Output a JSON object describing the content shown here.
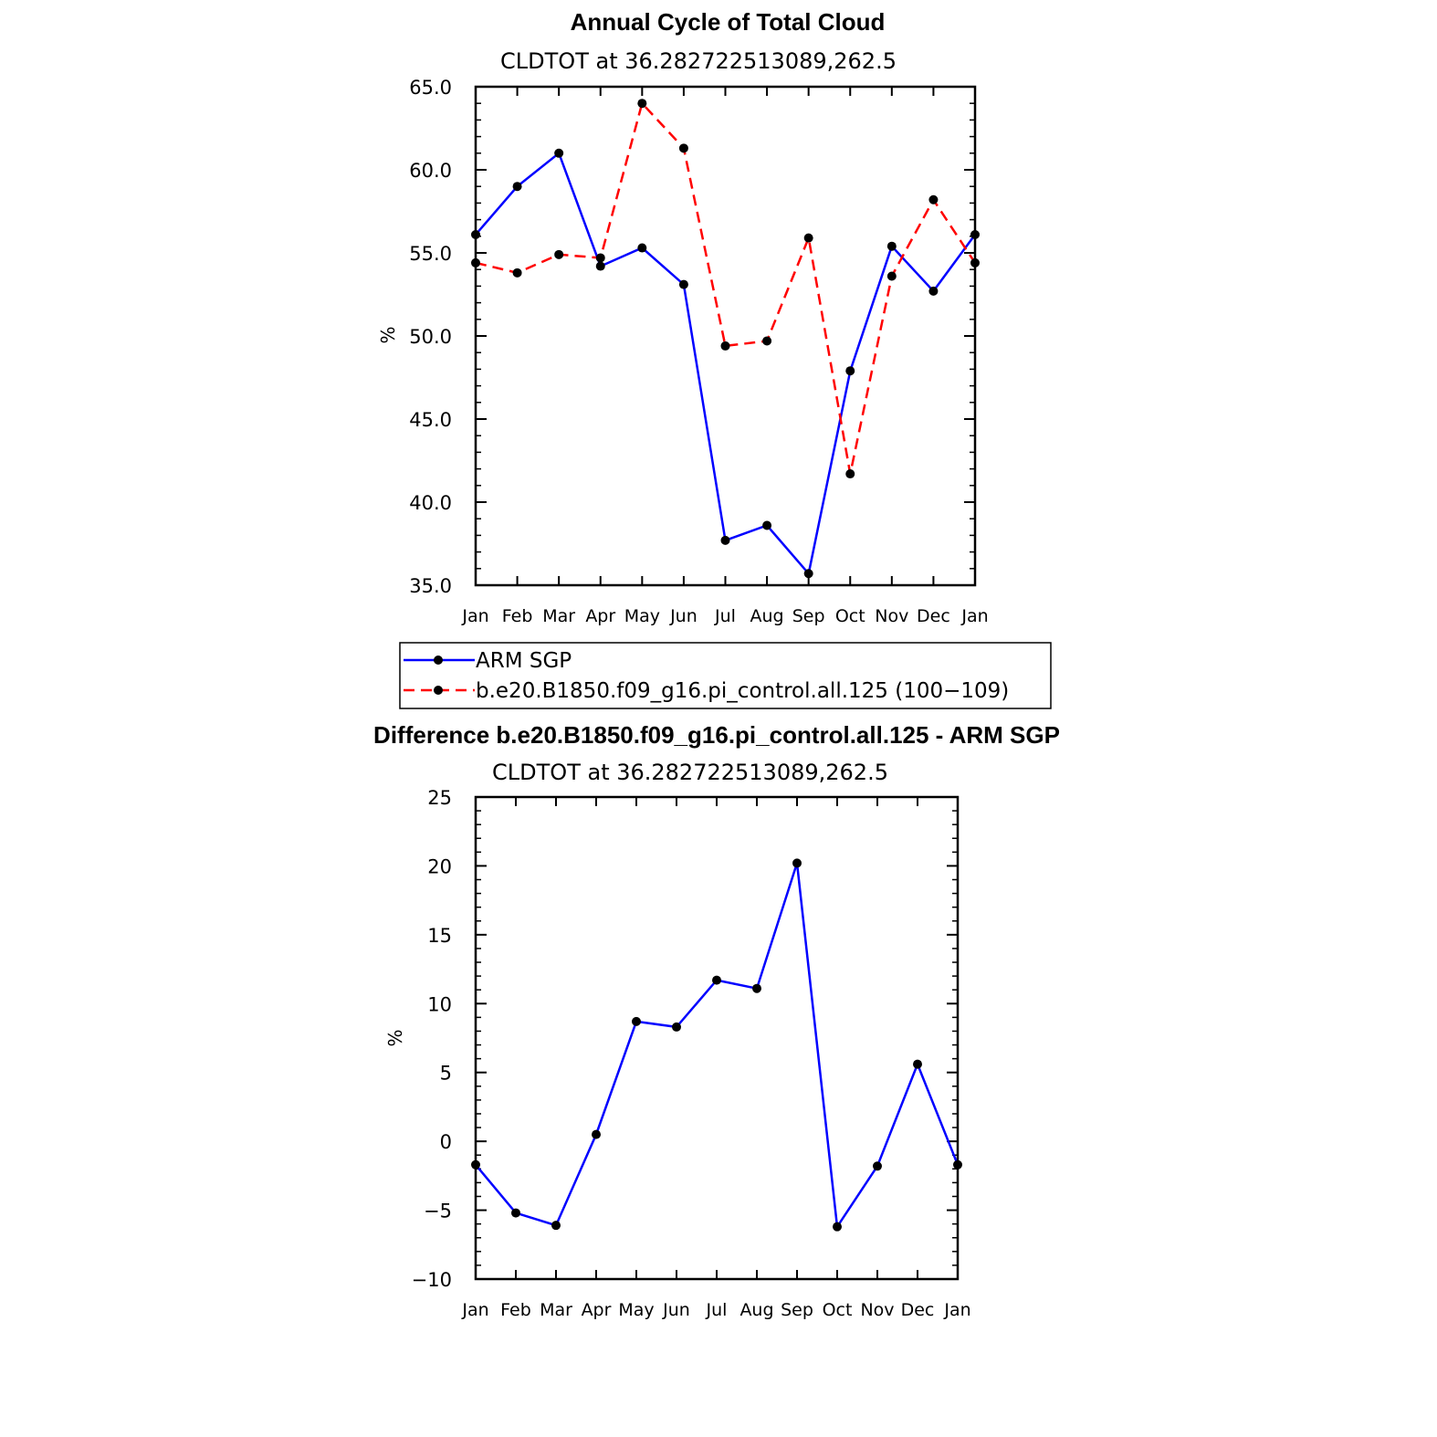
{
  "chart_data": [
    {
      "type": "line",
      "title": "Annual Cycle of Total Cloud",
      "subtitle": "CLDTOT at 36.282722513089,262.5",
      "xlabel": "",
      "ylabel": "%",
      "categories": [
        "Jan",
        "Feb",
        "Mar",
        "Apr",
        "May",
        "Jun",
        "Jul",
        "Aug",
        "Sep",
        "Oct",
        "Nov",
        "Dec",
        "Jan"
      ],
      "ylim": [
        35.0,
        65.0
      ],
      "yticks": [
        "35.0",
        "40.0",
        "45.0",
        "50.0",
        "55.0",
        "60.0",
        "65.0"
      ],
      "series": [
        {
          "name": "ARM SGP",
          "color": "#0000ff",
          "dash": "solid",
          "values": [
            56.1,
            59.0,
            61.0,
            54.2,
            55.3,
            53.1,
            37.7,
            38.6,
            35.7,
            47.9,
            55.4,
            52.7,
            56.1
          ]
        },
        {
          "name": "b.e20.B1850.f09_g16.pi_control.all.125 (100−109)",
          "color": "#ff0000",
          "dash": "dashed",
          "values": [
            54.4,
            53.8,
            54.9,
            54.7,
            64.0,
            61.3,
            49.4,
            49.7,
            55.9,
            41.7,
            53.6,
            58.2,
            54.4
          ]
        }
      ]
    },
    {
      "type": "line",
      "title": "Difference b.e20.B1850.f09_g16.pi_control.all.125 - ARM SGP",
      "subtitle": "CLDTOT at 36.282722513089,262.5",
      "xlabel": "",
      "ylabel": "%",
      "categories": [
        "Jan",
        "Feb",
        "Mar",
        "Apr",
        "May",
        "Jun",
        "Jul",
        "Aug",
        "Sep",
        "Oct",
        "Nov",
        "Dec",
        "Jan"
      ],
      "ylim": [
        -10,
        25
      ],
      "yticks": [
        "−10",
        "−5",
        "0",
        "5",
        "10",
        "15",
        "20",
        "25"
      ],
      "series": [
        {
          "name": "Difference",
          "color": "#0000ff",
          "dash": "solid",
          "values": [
            -1.7,
            -5.2,
            -6.1,
            0.5,
            8.7,
            8.3,
            11.7,
            11.1,
            20.2,
            -6.2,
            -1.8,
            5.6,
            -1.7
          ]
        }
      ]
    }
  ]
}
